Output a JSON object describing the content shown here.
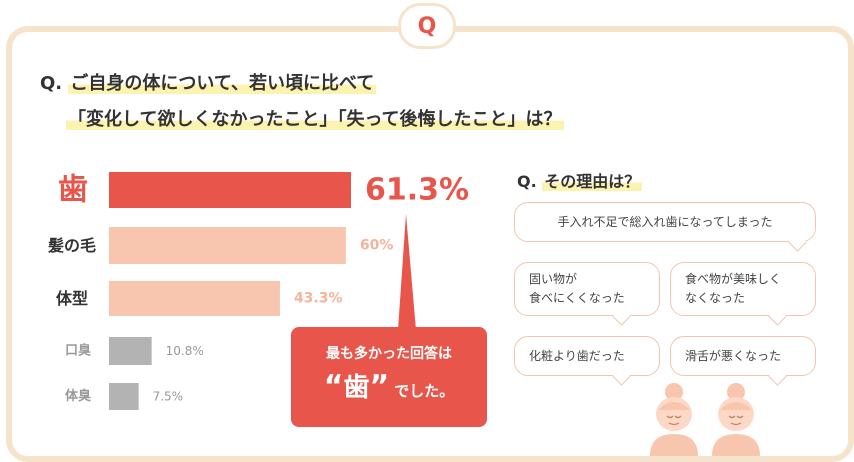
{
  "badge": "Q",
  "question": {
    "prefix": "Q.",
    "line1": "ご自身の体について、若い頃に比べて",
    "line2": "「変化して欲しくなかったこと」「失って後悔したこと」は？"
  },
  "chart_data": {
    "type": "bar",
    "orientation": "horizontal",
    "categories": [
      "歯",
      "髪の毛",
      "体型",
      "口臭",
      "体臭"
    ],
    "values": [
      61.3,
      60,
      43.3,
      10.8,
      7.5
    ],
    "labels": [
      "61.3%",
      "60%",
      "43.3%",
      "10.8%",
      "7.5%"
    ],
    "colors": [
      "#e8554a",
      "#f8c6ae",
      "#f8c6ae",
      "#b3b3b3",
      "#b3b3b3"
    ],
    "title": "",
    "xlabel": "",
    "ylabel": "",
    "xlim": [
      0,
      61.3
    ],
    "grid": false
  },
  "callout": {
    "line1": "最も多かった回答は",
    "open_quote": "“",
    "word": "歯",
    "close_quote": "”",
    "tail": "でした。"
  },
  "reasons": {
    "title_prefix": "Q.",
    "title": "その理由は？",
    "items": [
      "手入れ不足で総入れ歯になってしまった",
      "固い物が\n食べにくくなった",
      "食べ物が美味しく\nなくなった",
      "化粧より歯だった",
      "滑舌が悪くなった"
    ]
  },
  "illustration": {
    "icon": "elderly-women-illustration"
  }
}
